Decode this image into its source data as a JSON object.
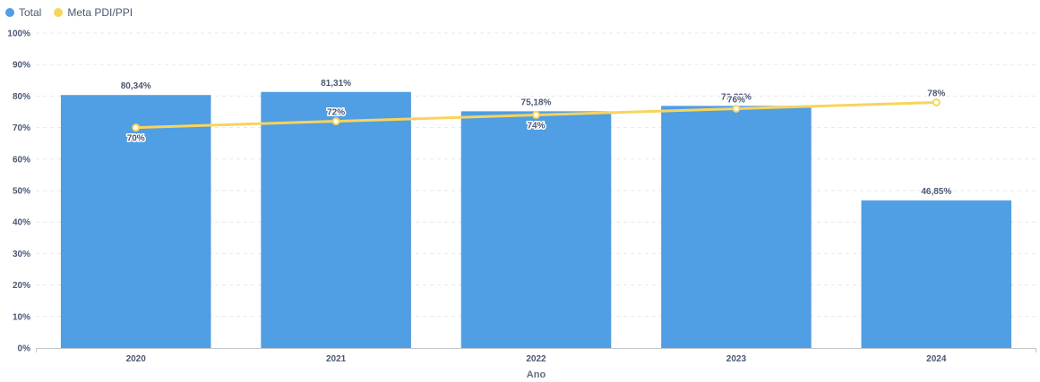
{
  "legend": {
    "items": [
      {
        "label": "Total",
        "color": "#509ee3"
      },
      {
        "label": "Meta PDI/PPI",
        "color": "#f9d45c"
      }
    ]
  },
  "chart_data": {
    "type": "bar",
    "categories": [
      "2020",
      "2021",
      "2022",
      "2023",
      "2024"
    ],
    "series": [
      {
        "name": "Total",
        "type": "bar",
        "color": "#509ee3",
        "values": [
          80.34,
          81.31,
          75.18,
          76.89,
          46.85
        ],
        "labels": [
          "80,34%",
          "81,31%",
          "75,18%",
          "76,89%",
          "46,85%"
        ]
      },
      {
        "name": "Meta PDI/PPI",
        "type": "line",
        "color": "#f9d45c",
        "values": [
          70,
          72,
          74,
          76,
          78
        ],
        "labels": [
          "70%",
          "72%",
          "74%",
          "76%",
          "78%"
        ]
      }
    ],
    "xlabel": "Ano",
    "ylabel": "",
    "ylim": [
      0,
      100
    ],
    "yticks": [
      "0%",
      "10%",
      "20%",
      "30%",
      "40%",
      "50%",
      "60%",
      "70%",
      "80%",
      "90%",
      "100%"
    ],
    "grid": true,
    "legend_position": "top-left"
  }
}
